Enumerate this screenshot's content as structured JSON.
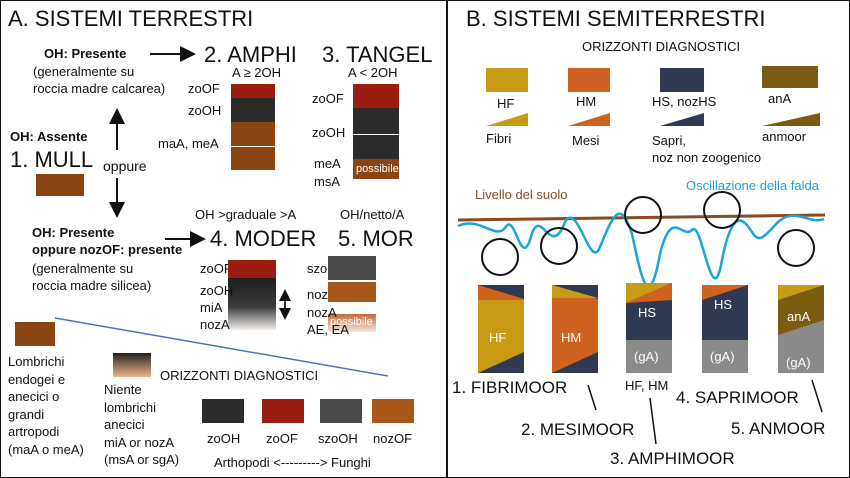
{
  "left": {
    "title": "A. SISTEMI TERRESTRI",
    "oh_presente": "OH: Presente",
    "oh_presente_note1": "(generalmente su",
    "oh_presente_note2": "roccia madre calcarea)",
    "oh_assente": "OH: Assente",
    "mull": "1. MULL",
    "oppure": "oppure",
    "oh_nozof1": "OH: Presente",
    "oh_nozof2": "oppure nozOF: presente",
    "silicea_note1": "(generalmente su",
    "silicea_note2": "roccia madre silicea)",
    "amphi": {
      "title": "2. AMPHI",
      "rule": "A ≥ 2OH",
      "zoOF": "zoOF",
      "zoOH": "zoOH",
      "maA": "maA, meA"
    },
    "tangel": {
      "title": "3. TANGEL",
      "rule": "A < 2OH",
      "zoOF": "zoOF",
      "zoOH": "zoOH",
      "meA": "meA",
      "msA": "msA",
      "possibile": "possibile"
    },
    "moder": {
      "title": "4. MODER",
      "rule": "OH >graduale >A",
      "zoOF": "zoOF",
      "zoOH": "zoOH",
      "miA": "miA",
      "nozA": "nozA"
    },
    "mor": {
      "title": "5. MOR",
      "rule": "OH/netto/A",
      "szoOH": "szoOH",
      "nozOF": "nozOF",
      "nozA": "nozA",
      "ae_ea": "AE, EA",
      "possibile": "possibile"
    },
    "lombrichi": [
      "Lombrichi",
      "endogei e",
      "anecici o",
      "grandi",
      "artropodi",
      "(maA o meA)"
    ],
    "niente": [
      "Niente",
      "lombrichi",
      "anecici",
      "miA or nozA",
      "(msA or sgA)"
    ],
    "diag_title": "ORIZZONTI DIAGNOSTICI",
    "diag": [
      {
        "label": "zoOH",
        "color": "#2b2b2b"
      },
      {
        "label": "zoOF",
        "color": "#9b1c10"
      },
      {
        "label": "szoOH",
        "color": "#4a4a4a"
      },
      {
        "label": "nozOF",
        "color": "#a8581a"
      }
    ],
    "arthropodi": "Arthopodi <---------> Funghi"
  },
  "right": {
    "title": "B. SISTEMI SEMITERRESTRI",
    "diag_title": "ORIZZONTI DIAGNOSTICI",
    "legend": [
      {
        "label": "HF",
        "sub": "Fibri",
        "color": "#c99a14"
      },
      {
        "label": "HM",
        "sub": "Mesi",
        "color": "#d0621f"
      },
      {
        "label": "HS, nozHS",
        "sub": "Sapri,",
        "sub2": "noz non zoogenico",
        "color": "#2f3a52"
      },
      {
        "label": "anA",
        "sub": "anmoor",
        "color": "#7b5a12"
      }
    ],
    "livello": "Livello del suolo",
    "oscillazione": "Oscillazione della falda",
    "colors": {
      "soil_line": "#8a4a22",
      "water": "#1aa3dc"
    },
    "columns": [
      {
        "label": "HF",
        "sub": ""
      },
      {
        "label": "HM",
        "sub": ""
      },
      {
        "label": "HS",
        "sub": "(gA)"
      },
      {
        "label": "HS",
        "sub": "(gA)"
      },
      {
        "label": "anA",
        "sub": "(gA)"
      }
    ],
    "names": {
      "fibrimoor": "1. FIBRIMOOR",
      "mesimoor": "2. MESIMOOR",
      "hf_hm": "HF, HM",
      "amphimoor": "3. AMPHIMOOR",
      "saprimoor": "4. SAPRIMOOR",
      "anmoor": "5. ANMOOR"
    }
  }
}
